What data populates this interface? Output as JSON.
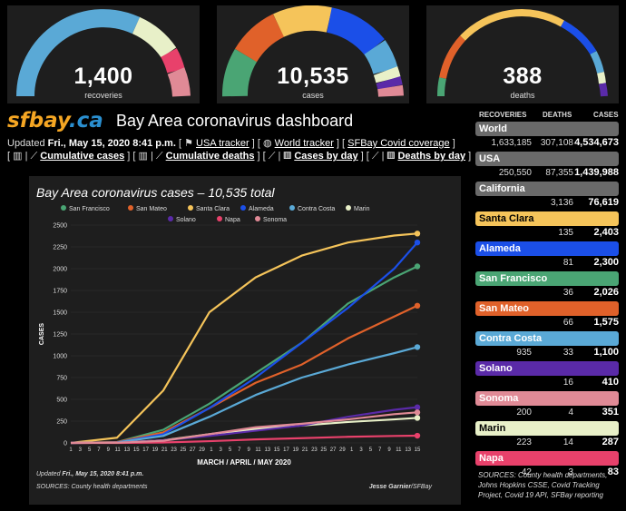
{
  "gauges": [
    {
      "value": "1,400",
      "label": "recoveries"
    },
    {
      "value": "10,535",
      "label": "cases"
    },
    {
      "value": "388",
      "label": "deaths"
    }
  ],
  "colors": {
    "san_francisco": "#4aa574",
    "san_mateo": "#e0612a",
    "santa_clara": "#f5c45a",
    "alameda": "#1b4fe8",
    "contra_costa": "#5aa9d6",
    "marin": "#e8f0c8",
    "solano": "#5a2aa8",
    "napa": "#e8416b",
    "sonoma": "#e08a96",
    "card_bg": "#1e1e1e",
    "gray_bar": "#6a6a6a"
  },
  "header": {
    "logo_sf": "sfbay",
    "logo_ca": ".ca",
    "title": "Bay Area coronavirus dashboard",
    "updated_prefix": "Updated ",
    "updated_date": "Fri., May 15, 2020 8:41 p.m.",
    "usa_tracker": "USA tracker",
    "world_tracker": "World tracker",
    "sfbay_coverage": "SFBay Covid coverage",
    "cumulative_cases": "Cumulative cases",
    "cumulative_deaths": "Cumulative deaths",
    "cases_by_day": "Cases by day",
    "deaths_by_day": "Deaths by day"
  },
  "chart_data": {
    "type": "line",
    "title": "Bay Area coronavirus cases – 10,535 total",
    "xlabel": "MARCH / APRIL / MAY 2020",
    "ylabel": "CASES",
    "ylim": [
      0,
      2500
    ],
    "yticks": [
      "0",
      "250",
      "500",
      "750",
      "1000",
      "1250",
      "1500",
      "1750",
      "2000",
      "2250",
      "2500"
    ],
    "xticks": [
      "1",
      "3",
      "5",
      "7",
      "9",
      "11",
      "13",
      "15",
      "17",
      "19",
      "21",
      "23",
      "25",
      "27",
      "29",
      "1",
      "3",
      "5",
      "7",
      "9",
      "11",
      "13",
      "15",
      "17",
      "19",
      "21",
      "23",
      "25",
      "27",
      "29",
      "1",
      "3",
      "5",
      "7",
      "9",
      "11",
      "13",
      "15"
    ],
    "x_days": [
      0,
      10,
      20,
      30,
      40,
      50,
      60,
      70,
      75
    ],
    "legend_position": "top",
    "series": [
      {
        "name": "San Francisco",
        "key": "san_francisco",
        "values": [
          0,
          10,
          150,
          450,
          800,
          1150,
          1600,
          1900,
          2026
        ]
      },
      {
        "name": "San Mateo",
        "key": "san_mateo",
        "values": [
          0,
          10,
          120,
          400,
          690,
          900,
          1200,
          1450,
          1575
        ]
      },
      {
        "name": "Santa Clara",
        "key": "santa_clara",
        "values": [
          0,
          60,
          600,
          1500,
          1900,
          2150,
          2300,
          2380,
          2403
        ]
      },
      {
        "name": "Alameda",
        "key": "alameda",
        "values": [
          0,
          5,
          100,
          400,
          750,
          1150,
          1550,
          2000,
          2300
        ]
      },
      {
        "name": "Contra Costa",
        "key": "contra_costa",
        "values": [
          0,
          5,
          80,
          300,
          550,
          750,
          900,
          1030,
          1100
        ]
      },
      {
        "name": "Marin",
        "key": "marin",
        "values": [
          0,
          2,
          30,
          100,
          160,
          200,
          240,
          270,
          287
        ]
      },
      {
        "name": "Solano",
        "key": "solano",
        "values": [
          0,
          2,
          30,
          80,
          140,
          200,
          300,
          380,
          410
        ]
      },
      {
        "name": "Napa",
        "key": "napa",
        "values": [
          0,
          0,
          5,
          20,
          40,
          55,
          70,
          80,
          83
        ]
      },
      {
        "name": "Sonoma",
        "key": "sonoma",
        "values": [
          0,
          2,
          25,
          100,
          180,
          220,
          270,
          330,
          351
        ]
      }
    ],
    "updated_note_prefix": "Updated ",
    "updated_note_date": "Fri., May 15, 2020 8:41 p.m.",
    "sources_note": "SOURCES: County health departments",
    "credit_name": "Jesse Garnier",
    "credit_org": "/SFBay"
  },
  "stats": {
    "headers": {
      "recoveries": "RECOVERIES",
      "deaths": "DEATHS",
      "cases": "CASES"
    },
    "regions": [
      {
        "name": "World",
        "color": "#6a6a6a",
        "text": "#fff",
        "recoveries": "1,633,185",
        "deaths": "307,108",
        "cases": "4,534,673"
      },
      {
        "name": "USA",
        "color": "#6a6a6a",
        "text": "#fff",
        "recoveries": "250,550",
        "deaths": "87,355",
        "cases": "1,439,988"
      },
      {
        "name": "California",
        "color": "#6a6a6a",
        "text": "#fff",
        "recoveries": "",
        "deaths": "3,136",
        "cases": "76,619"
      },
      {
        "name": "Santa Clara",
        "color": "#f5c45a",
        "text": "#000",
        "recoveries": "",
        "deaths": "135",
        "cases": "2,403"
      },
      {
        "name": "Alameda",
        "color": "#1b4fe8",
        "text": "#fff",
        "recoveries": "",
        "deaths": "81",
        "cases": "2,300"
      },
      {
        "name": "San Francisco",
        "color": "#4aa574",
        "text": "#fff",
        "recoveries": "",
        "deaths": "36",
        "cases": "2,026"
      },
      {
        "name": "San Mateo",
        "color": "#e0612a",
        "text": "#fff",
        "recoveries": "",
        "deaths": "66",
        "cases": "1,575"
      },
      {
        "name": "Contra Costa",
        "color": "#5aa9d6",
        "text": "#fff",
        "recoveries": "935",
        "deaths": "33",
        "cases": "1,100"
      },
      {
        "name": "Solano",
        "color": "#5a2aa8",
        "text": "#fff",
        "recoveries": "",
        "deaths": "16",
        "cases": "410"
      },
      {
        "name": "Sonoma",
        "color": "#e08a96",
        "text": "#fff",
        "recoveries": "200",
        "deaths": "4",
        "cases": "351"
      },
      {
        "name": "Marin",
        "color": "#e8f0c8",
        "text": "#000",
        "recoveries": "223",
        "deaths": "14",
        "cases": "287"
      },
      {
        "name": "Napa",
        "color": "#e8416b",
        "text": "#fff",
        "recoveries": "42",
        "deaths": "3",
        "cases": "83"
      }
    ],
    "sources": "SOURCES: County health departments, Johns Hopkins CSSE, Covid Tracking Project, Covid 19 API, SFBay reporting"
  }
}
